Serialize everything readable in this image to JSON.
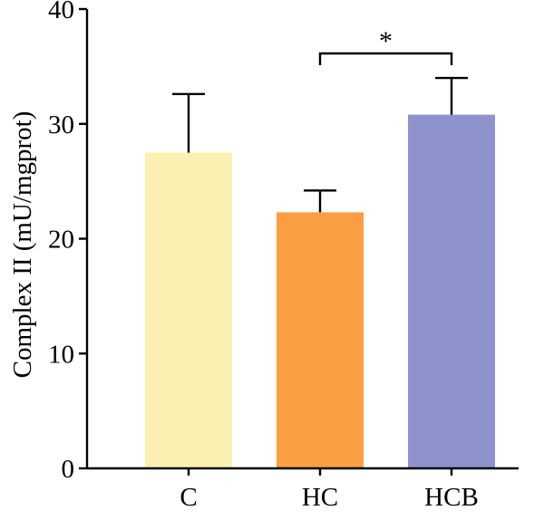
{
  "chart_data": {
    "type": "bar",
    "title": "",
    "xlabel": "",
    "ylabel": "Complex II (mU/mgprot)",
    "ylim": [
      0,
      40
    ],
    "yticks": [
      0,
      10,
      20,
      30,
      40
    ],
    "grid": false,
    "categories": [
      "C",
      "HC",
      "HCB"
    ],
    "values": [
      27.5,
      22.3,
      30.8
    ],
    "errors": [
      5.1,
      1.9,
      3.2
    ],
    "colors": [
      "#FBF0B2",
      "#FB9E42",
      "#8E92CC"
    ],
    "error_bar_direction": "upper",
    "significance": [
      {
        "from": "HC",
        "to": "HCB",
        "label": "*"
      }
    ]
  }
}
